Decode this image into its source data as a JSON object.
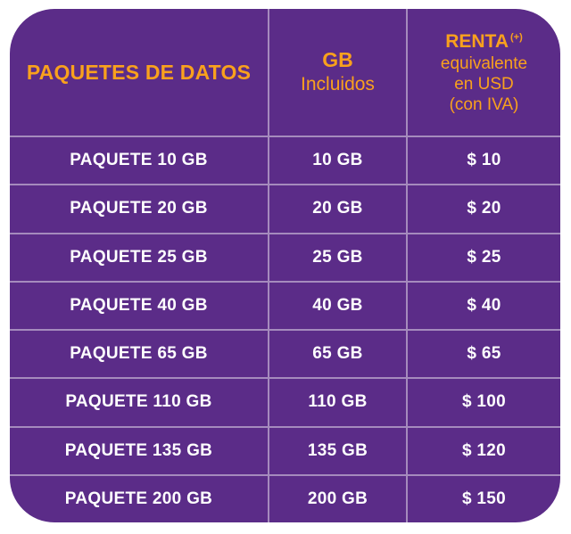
{
  "colors": {
    "background": "#ffffff",
    "card_purple": "#5b2c88",
    "header_orange": "#f9a11d",
    "row_text_white": "#ffffff",
    "grid_line": "rgba(255,255,255,0.45)"
  },
  "header": {
    "col1": "PAQUETES DE DATOS",
    "col2_line1": "GB",
    "col2_line2": "Incluidos",
    "col3_title": "RENTA",
    "col3_sup": "(+)",
    "col3_lines": [
      "equivalente",
      "en USD",
      "(con IVA)"
    ]
  },
  "table": {
    "rows": [
      {
        "package": "PAQUETE 10 GB",
        "gb": "10 GB",
        "price": "$ 10"
      },
      {
        "package": "PAQUETE 20 GB",
        "gb": "20 GB",
        "price": "$ 20"
      },
      {
        "package": "PAQUETE 25 GB",
        "gb": "25 GB",
        "price": "$ 25"
      },
      {
        "package": "PAQUETE 40 GB",
        "gb": "40 GB",
        "price": "$ 40"
      },
      {
        "package": "PAQUETE 65 GB",
        "gb": "65 GB",
        "price": "$ 65"
      },
      {
        "package": "PAQUETE 110 GB",
        "gb": "110 GB",
        "price": "$ 100"
      },
      {
        "package": "PAQUETE 135 GB",
        "gb": "135 GB",
        "price": "$ 120"
      },
      {
        "package": "PAQUETE 200 GB",
        "gb": "200 GB",
        "price": "$ 150"
      }
    ]
  },
  "chart_data": {
    "type": "table",
    "title": "PAQUETES DE DATOS",
    "columns": [
      "PAQUETES DE DATOS",
      "GB Incluidos",
      "RENTA (+) equivalente en USD (con IVA)"
    ],
    "rows": [
      [
        "PAQUETE 10 GB",
        "10 GB",
        "$ 10"
      ],
      [
        "PAQUETE 20 GB",
        "20 GB",
        "$ 20"
      ],
      [
        "PAQUETE 25 GB",
        "25 GB",
        "$ 25"
      ],
      [
        "PAQUETE 40 GB",
        "40 GB",
        "$ 40"
      ],
      [
        "PAQUETE 65 GB",
        "65 GB",
        "$ 65"
      ],
      [
        "PAQUETE 110 GB",
        "110 GB",
        "$ 100"
      ],
      [
        "PAQUETE 135 GB",
        "135 GB",
        "$ 120"
      ],
      [
        "PAQUETE 200 GB",
        "200 GB",
        "$ 150"
      ]
    ],
    "gb_values": [
      10,
      20,
      25,
      40,
      65,
      110,
      135,
      200
    ],
    "usd_values": [
      10,
      20,
      25,
      40,
      65,
      100,
      120,
      150
    ]
  }
}
